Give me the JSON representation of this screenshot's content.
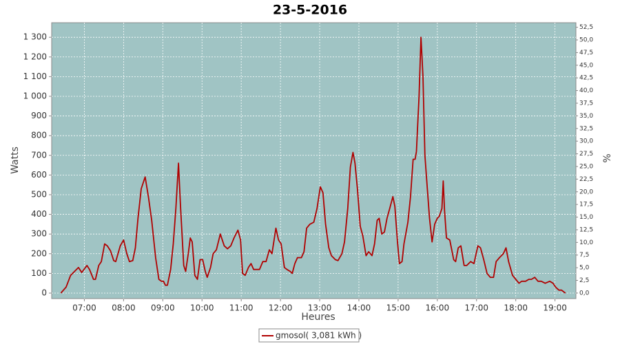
{
  "chart_data": {
    "type": "line",
    "title": "23-5-2016",
    "x_label": "Heures",
    "y_label": "Watts",
    "y2_label": "%",
    "x": [
      "06:24",
      "06:32",
      "06:39",
      "06:45",
      "06:51",
      "06:56",
      "07:04",
      "07:08",
      "07:14",
      "07:17",
      "07:22",
      "07:26",
      "07:31",
      "07:35",
      "07:40",
      "07:45",
      "07:48",
      "07:55",
      "08:00",
      "08:05",
      "08:09",
      "08:14",
      "08:18",
      "08:22",
      "08:27",
      "08:33",
      "08:38",
      "08:43",
      "08:49",
      "08:54",
      "08:58",
      "09:01",
      "09:04",
      "09:07",
      "09:12",
      "09:16",
      "09:20",
      "09:24",
      "09:27",
      "09:32",
      "09:35",
      "09:39",
      "09:42",
      "09:45",
      "09:49",
      "09:53",
      "09:57",
      "10:01",
      "10:05",
      "10:08",
      "10:13",
      "10:17",
      "10:22",
      "10:28",
      "10:34",
      "10:39",
      "10:44",
      "10:49",
      "10:55",
      "10:59",
      "11:02",
      "11:06",
      "11:11",
      "11:15",
      "11:19",
      "11:24",
      "11:28",
      "11:33",
      "11:38",
      "11:43",
      "11:47",
      "11:53",
      "11:57",
      "12:01",
      "12:06",
      "12:10",
      "12:15",
      "12:18",
      "12:22",
      "12:26",
      "12:32",
      "12:36",
      "12:40",
      "12:45",
      "12:51",
      "12:56",
      "13:01",
      "13:05",
      "13:09",
      "13:14",
      "13:18",
      "13:24",
      "13:28",
      "13:34",
      "13:38",
      "13:43",
      "13:47",
      "13:51",
      "13:54",
      "13:58",
      "14:02",
      "14:06",
      "14:11",
      "14:15",
      "14:20",
      "14:24",
      "14:28",
      "14:31",
      "14:35",
      "14:39",
      "14:43",
      "14:48",
      "14:52",
      "14:55",
      "14:59",
      "15:02",
      "15:06",
      "15:09",
      "15:15",
      "15:19",
      "15:23",
      "15:26",
      "15:28",
      "15:32",
      "15:35",
      "15:38",
      "15:41",
      "15:44",
      "15:48",
      "15:52",
      "15:56",
      "16:00",
      "16:03",
      "16:07",
      "16:09",
      "16:11",
      "16:14",
      "16:19",
      "16:25",
      "16:28",
      "16:32",
      "16:36",
      "16:41",
      "16:45",
      "16:51",
      "16:56",
      "17:02",
      "17:06",
      "17:11",
      "17:16",
      "17:21",
      "17:26",
      "17:30",
      "17:35",
      "17:41",
      "17:45",
      "17:49",
      "17:55",
      "18:00",
      "18:05",
      "18:09",
      "18:15",
      "18:20",
      "18:24",
      "18:29",
      "18:34",
      "18:39",
      "18:45",
      "18:52",
      "18:57",
      "19:01",
      "19:06",
      "19:10",
      "19:14",
      "19:16"
    ],
    "series": [
      {
        "name": "gmosol( 3,081 kWh )",
        "color": "#b00000",
        "values": [
          0,
          30,
          90,
          110,
          130,
          105,
          140,
          120,
          70,
          70,
          140,
          160,
          250,
          240,
          215,
          165,
          160,
          240,
          270,
          200,
          160,
          165,
          230,
          380,
          530,
          590,
          490,
          370,
          180,
          70,
          60,
          60,
          40,
          40,
          120,
          250,
          430,
          660,
          450,
          140,
          110,
          200,
          280,
          260,
          90,
          70,
          170,
          170,
          110,
          80,
          130,
          200,
          220,
          300,
          240,
          225,
          240,
          280,
          320,
          270,
          100,
          90,
          130,
          150,
          120,
          120,
          120,
          160,
          160,
          220,
          200,
          330,
          270,
          250,
          130,
          120,
          110,
          100,
          150,
          180,
          180,
          210,
          330,
          350,
          360,
          430,
          540,
          510,
          350,
          230,
          190,
          170,
          165,
          200,
          260,
          430,
          640,
          715,
          660,
          520,
          340,
          290,
          190,
          210,
          190,
          250,
          370,
          380,
          300,
          310,
          380,
          440,
          490,
          440,
          260,
          150,
          160,
          250,
          360,
          490,
          680,
          680,
          720,
          1000,
          1300,
          1100,
          700,
          560,
          380,
          260,
          350,
          380,
          390,
          430,
          570,
          420,
          280,
          270,
          170,
          160,
          230,
          240,
          140,
          140,
          160,
          150,
          240,
          230,
          170,
          100,
          80,
          80,
          160,
          180,
          200,
          230,
          160,
          90,
          70,
          50,
          60,
          60,
          70,
          70,
          80,
          60,
          60,
          50,
          60,
          50,
          30,
          15,
          15,
          5,
          0
        ]
      }
    ],
    "xlim": [
      "06:10",
      "19:32"
    ],
    "xticks": [
      "07:00",
      "08:00",
      "09:00",
      "10:00",
      "11:00",
      "12:00",
      "13:00",
      "14:00",
      "15:00",
      "16:00",
      "17:00",
      "18:00",
      "19:00"
    ],
    "ylim": [
      -28,
      1374
    ],
    "yticks": [
      0,
      100,
      200,
      300,
      400,
      500,
      600,
      700,
      800,
      900,
      {
        "value": 1000,
        "label": "1 000"
      },
      {
        "value": 1100,
        "label": "1 100"
      },
      {
        "value": 1200,
        "label": "1 200"
      },
      {
        "value": 1300,
        "label": "1 300"
      }
    ],
    "y2lim": [
      -1.1,
      53.4
    ],
    "y2ticks": [
      {
        "value": 0,
        "label": "0,0"
      },
      {
        "value": 2.5,
        "label": "2,5"
      },
      {
        "value": 5,
        "label": "5,0"
      },
      {
        "value": 7.5,
        "label": "7,5"
      },
      {
        "value": 10,
        "label": "10,0"
      },
      {
        "value": 12.5,
        "label": "12,5"
      },
      {
        "value": 15,
        "label": "15,0"
      },
      {
        "value": 17.5,
        "label": "17,5"
      },
      {
        "value": 20,
        "label": "20,0"
      },
      {
        "value": 22.5,
        "label": "22,5"
      },
      {
        "value": 25,
        "label": "25,0"
      },
      {
        "value": 27.5,
        "label": "27,5"
      },
      {
        "value": 30,
        "label": "30,0"
      },
      {
        "value": 32.5,
        "label": "32,5"
      },
      {
        "value": 35,
        "label": "35,0"
      },
      {
        "value": 37.5,
        "label": "37,5"
      },
      {
        "value": 40,
        "label": "40,0"
      },
      {
        "value": 42.5,
        "label": "42,5"
      },
      {
        "value": 45,
        "label": "45,0"
      },
      {
        "value": 47.5,
        "label": "47,5"
      },
      {
        "value": 50,
        "label": "50,0"
      },
      {
        "value": 52.5,
        "label": "52,5"
      }
    ],
    "grid": true,
    "plot_background": "#a0c4c4",
    "legend": "bottom"
  }
}
